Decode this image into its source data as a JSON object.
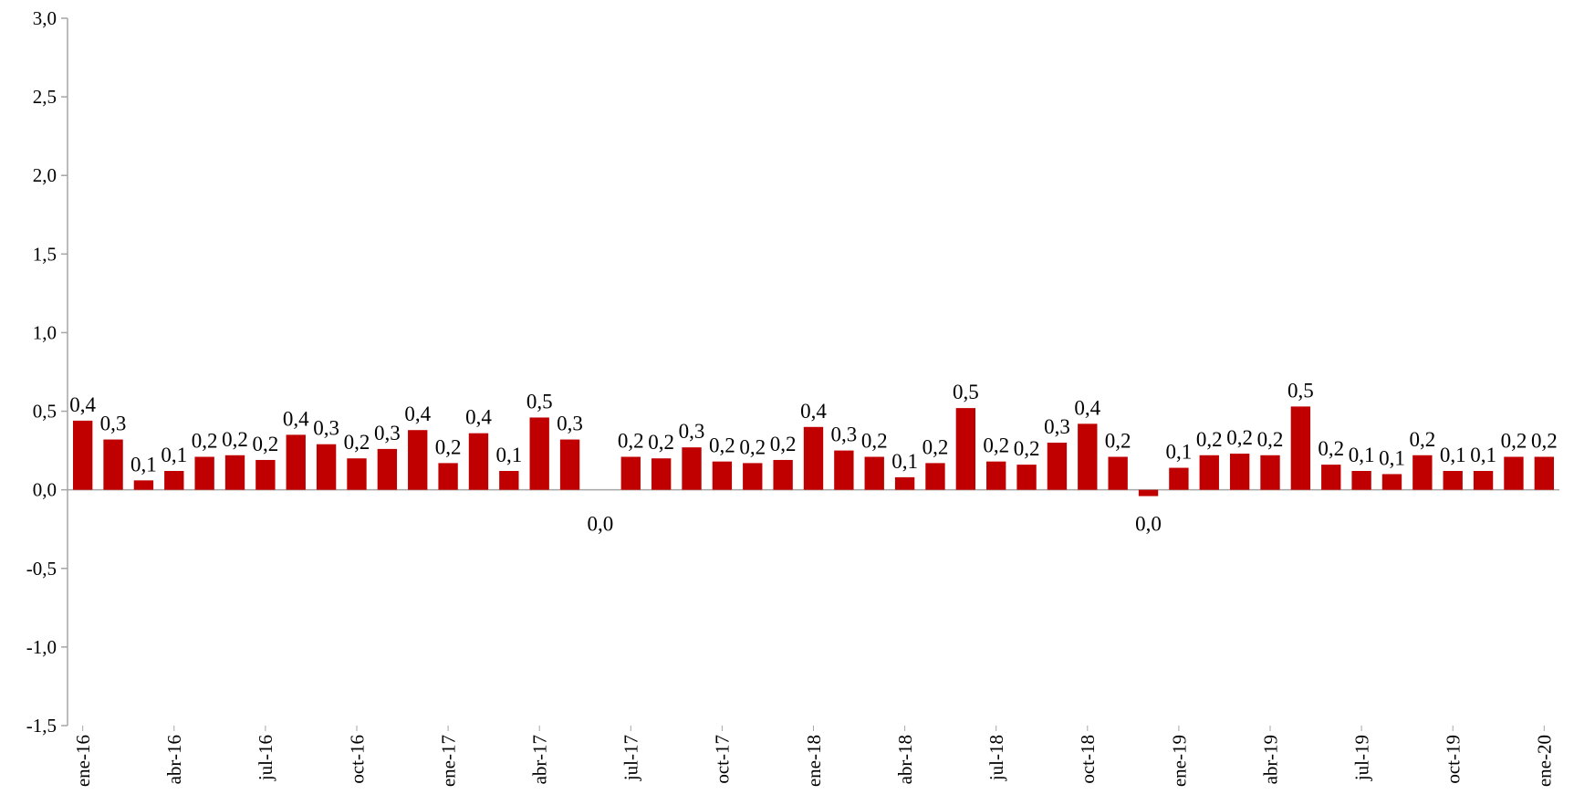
{
  "chart_data": {
    "type": "bar",
    "categories": [
      "ene-16",
      null,
      null,
      "abr-16",
      null,
      null,
      "jul-16",
      null,
      null,
      "oct-16",
      null,
      null,
      "ene-17",
      null,
      null,
      "abr-17",
      null,
      null,
      "jul-17",
      null,
      null,
      "oct-17",
      null,
      null,
      "ene-18",
      null,
      null,
      "abr-18",
      null,
      null,
      "jul-18",
      null,
      null,
      "oct-18",
      null,
      null,
      "ene-19",
      null,
      null,
      "abr-19",
      null,
      null,
      "jul-19",
      null,
      null,
      "oct-19",
      null,
      null,
      "ene-20"
    ],
    "values": [
      0.44,
      0.32,
      0.06,
      0.12,
      0.21,
      0.22,
      0.19,
      0.35,
      0.29,
      0.2,
      0.26,
      0.38,
      0.17,
      0.36,
      0.12,
      0.46,
      0.32,
      0.0,
      0.21,
      0.2,
      0.27,
      0.18,
      0.17,
      0.19,
      0.4,
      0.25,
      0.21,
      0.08,
      0.17,
      0.52,
      0.18,
      0.16,
      0.3,
      0.42,
      0.21,
      -0.04,
      0.14,
      0.22,
      0.23,
      0.22,
      0.53,
      0.16,
      0.12,
      0.1,
      0.22,
      0.12,
      0.12,
      0.21,
      0.21
    ],
    "value_labels": [
      "0,4",
      "0,3",
      "0,1",
      "0,1",
      "0,2",
      "0,2",
      "0,2",
      "0,4",
      "0,3",
      "0,2",
      "0,3",
      "0,4",
      "0,2",
      "0,4",
      "0,1",
      "0,5",
      "0,3",
      "0,0",
      "0,2",
      "0,2",
      "0,3",
      "0,2",
      "0,2",
      "0,2",
      "0,4",
      "0,3",
      "0,2",
      "0,1",
      "0,2",
      "0,5",
      "0,2",
      "0,2",
      "0,3",
      "0,4",
      "0,2",
      "0,0",
      "0,1",
      "0,2",
      "0,2",
      "0,2",
      "0,5",
      "0,2",
      "0,1",
      "0,1",
      "0,2",
      "0,1",
      "0,1",
      "0,2",
      "0,2"
    ],
    "color": "#c00000",
    "ylim": [
      -1.5,
      3.0
    ],
    "yticks": [
      {
        "value": -1.5,
        "label": "-1,5"
      },
      {
        "value": -1.0,
        "label": "-1,0"
      },
      {
        "value": -0.5,
        "label": "-0,5"
      },
      {
        "value": 0,
        "label": "0,0"
      },
      {
        "value": 0.5,
        "label": "0,5"
      },
      {
        "value": 1.0,
        "label": "1,0"
      },
      {
        "value": 1.5,
        "label": "1,5"
      },
      {
        "value": 2.0,
        "label": "2,0"
      },
      {
        "value": 2.5,
        "label": "2,5"
      },
      {
        "value": 3.0,
        "label": "3,0"
      }
    ]
  }
}
